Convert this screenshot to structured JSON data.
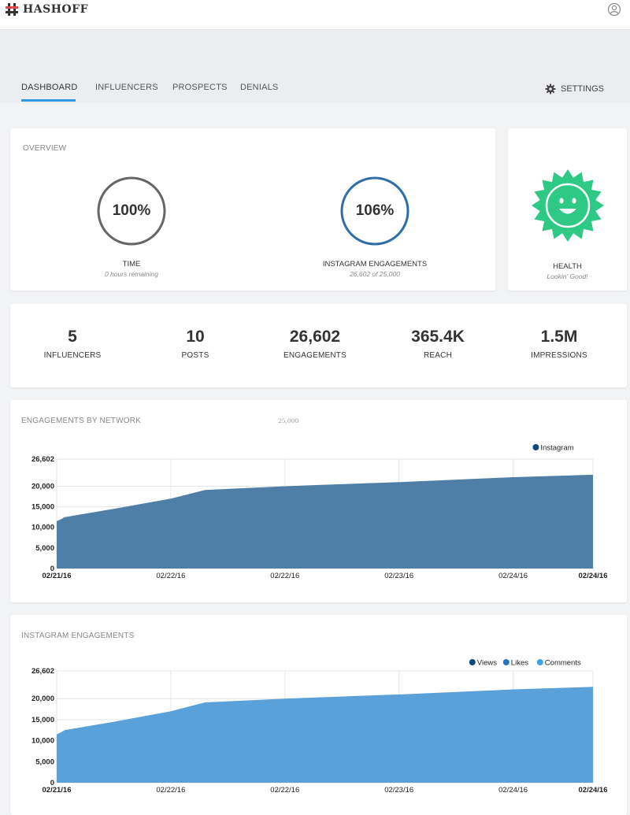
{
  "app": {
    "name": "HASHOFF"
  },
  "nav": {
    "tabs": [
      {
        "label": "DASHBOARD",
        "active": true
      },
      {
        "label": "INFLUENCERS",
        "active": false
      },
      {
        "label": "PROSPECTS",
        "active": false
      },
      {
        "label": "DENIALS",
        "active": false
      }
    ],
    "settings_label": "SETTINGS"
  },
  "overview": {
    "title": "OVERVIEW",
    "time": {
      "value": "100%",
      "label": "TIME",
      "sub": "0 hours remaining",
      "progress": 1.0
    },
    "engagements": {
      "value": "106%",
      "label": "INSTAGRAM ENGAGEMENTS",
      "sub": "26,602 of 25,000",
      "progress": 1.0
    }
  },
  "health": {
    "label": "HEALTH",
    "sub": "Lookin' Good!",
    "color": "#2ec985"
  },
  "stats": [
    {
      "value": "5",
      "label": "INFLUENCERS"
    },
    {
      "value": "10",
      "label": "POSTS"
    },
    {
      "value": "26,602",
      "label": "ENGAGEMENTS"
    },
    {
      "value": "365.4K",
      "label": "REACH"
    },
    {
      "value": "1.5M",
      "label": "IMPRESSIONS"
    }
  ],
  "colors": {
    "accent": "#2f9ae0",
    "time_ring": "#666666",
    "engagement_ring": "#2d6ea8",
    "network_area": "#4f7fa6",
    "instagram_area": "#5aa1d9"
  },
  "chart_data": [
    {
      "type": "area",
      "title": "ENGAGEMENTS BY NETWORK",
      "top_note": "25,000",
      "ylim": [
        0,
        26602
      ],
      "yticks": [
        0,
        5000,
        10000,
        15000,
        20000,
        26602
      ],
      "ytick_labels": [
        "0",
        "5,000",
        "10,000",
        "15,000",
        "20,000",
        "26,602"
      ],
      "xlim": [
        0,
        4.7
      ],
      "xticks": [
        0,
        1,
        2,
        3,
        4,
        4.7
      ],
      "xtick_labels": [
        "02/21/16",
        "02/22/16",
        "02/22/16",
        "02/23/16",
        "02/24/16",
        "02/24/16"
      ],
      "legend": "top-right",
      "series": [
        {
          "name": "Instagram",
          "color": "#0f4b7a",
          "x": [
            0,
            0.04,
            0.07,
            0.5,
            1.0,
            1.3,
            2.0,
            3.0,
            4.0,
            4.7
          ],
          "values": [
            11500,
            12000,
            12500,
            14500,
            17000,
            19100,
            20000,
            21000,
            22200,
            22800
          ]
        }
      ]
    },
    {
      "type": "area",
      "title": "INSTAGRAM ENGAGEMENTS",
      "ylim": [
        0,
        26602
      ],
      "yticks": [
        0,
        5000,
        10000,
        15000,
        20000,
        26602
      ],
      "ytick_labels": [
        "0",
        "5,000",
        "10,000",
        "15,000",
        "20,000",
        "26,602"
      ],
      "xlim": [
        0,
        4.7
      ],
      "xticks": [
        0,
        1,
        2,
        3,
        4,
        4.7
      ],
      "xtick_labels": [
        "02/21/16",
        "02/22/16",
        "02/22/16",
        "02/23/16",
        "02/24/16",
        "02/24/16"
      ],
      "legend": "top-right",
      "series": [
        {
          "name": "Views",
          "color": "#0f4b7a",
          "x": [],
          "values": []
        },
        {
          "name": "Likes",
          "color": "#2476c4",
          "x": [],
          "values": []
        },
        {
          "name": "Comments",
          "color": "#3aa4e8",
          "x": [
            0,
            0.04,
            0.07,
            0.5,
            1.0,
            1.3,
            2.0,
            3.0,
            4.0,
            4.7
          ],
          "values": [
            11500,
            12000,
            12500,
            14500,
            17000,
            19100,
            20000,
            21000,
            22200,
            22800
          ]
        }
      ]
    }
  ]
}
